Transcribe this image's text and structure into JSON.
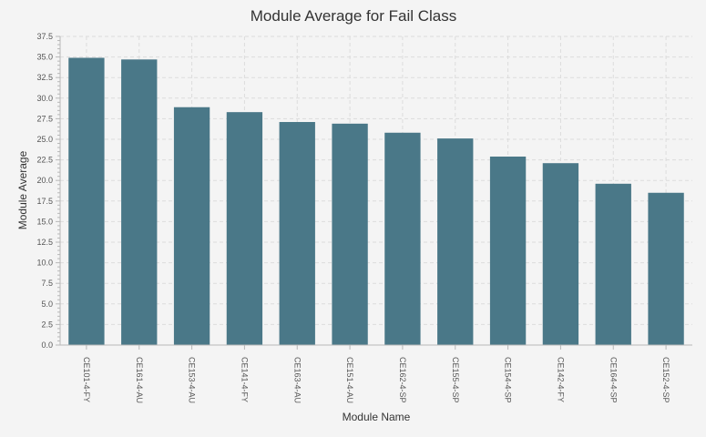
{
  "chart_data": {
    "type": "bar",
    "title": "Module Average for Fail Class",
    "xlabel": "Module Name",
    "ylabel": "Module Average",
    "categories": [
      "CE101-4-FY",
      "CE161-4-AU",
      "CE153-4-AU",
      "CE141-4-FY",
      "CE163-4-AU",
      "CE151-4-AU",
      "CE162-4-SP",
      "CE155-4-SP",
      "CE154-4-SP",
      "CE142-4-FY",
      "CE164-4-SP",
      "CE152-4-SP"
    ],
    "values": [
      34.9,
      34.7,
      28.9,
      28.3,
      27.1,
      26.9,
      25.8,
      25.1,
      22.9,
      22.1,
      19.6,
      18.5
    ],
    "ylim": [
      0,
      37.5
    ],
    "yticks": [
      "0.0",
      "2.5",
      "5.0",
      "7.5",
      "10.0",
      "12.5",
      "15.0",
      "17.5",
      "20.0",
      "22.5",
      "25.0",
      "27.5",
      "30.0",
      "32.5",
      "35.0",
      "37.5"
    ],
    "ytick_values": [
      0,
      2.5,
      5,
      7.5,
      10,
      12.5,
      15,
      17.5,
      20,
      22.5,
      25,
      27.5,
      30,
      32.5,
      35,
      37.5
    ],
    "grid": true,
    "bar_color": "#4a7888"
  }
}
